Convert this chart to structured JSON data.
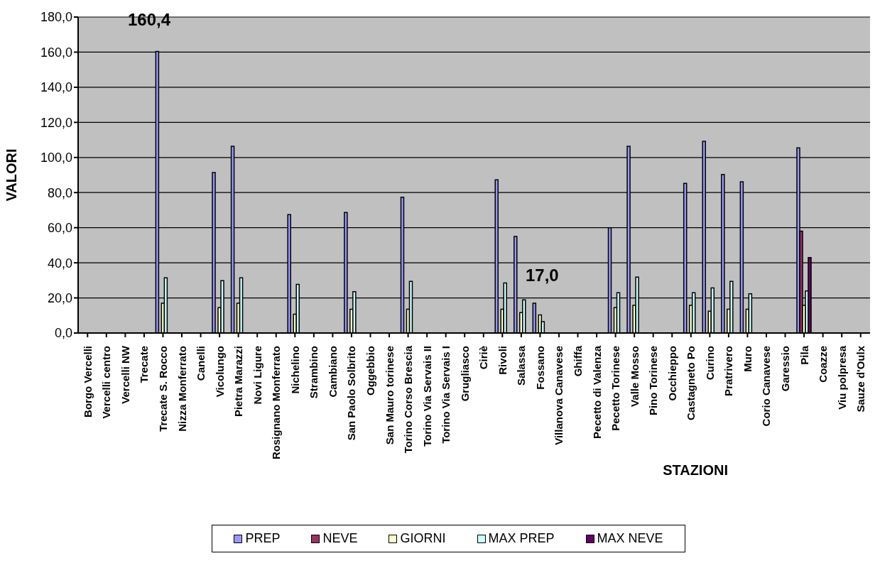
{
  "chart_data": {
    "type": "bar",
    "xlabel": "STAZIONI",
    "ylabel": "VALORI",
    "categories": [
      "Borgo Vercelli",
      "Vercelli centro",
      "Vercelli NW",
      "Trecate",
      "Trecate S. Rocco",
      "Nizza Monferrato",
      "Canelli",
      "Vicolungo",
      "Pietra Marazzi",
      "Novi Ligure",
      "Rosignano Monferrato",
      "Nichelino",
      "Strambino",
      "Cambiano",
      "San Paolo Solbrito",
      "Oggebbio",
      "San Mauro torinese",
      "Torino Corso Brescia",
      "Torino Via Servais II",
      "Torino Via Servais I",
      "Grugliasco",
      "Ciriè",
      "Rivoli",
      "Salassa",
      "Fossano",
      "Villanova Canavese",
      "Ghiffa",
      "Pecetto di Valenza",
      "Pecetto Torinese",
      "Valle Mosso",
      "Pino Torinese",
      "Occhieppo",
      "Castagneto Po",
      "Curino",
      "Pratrivero",
      "Muro",
      "Corio Canavese",
      "Garessio",
      "Pila",
      "Coazze",
      "Viu polpresa",
      "Sauze d'Oulx"
    ],
    "series": [
      {
        "name": "PREP",
        "color": "#9999ff",
        "values": [
          null,
          null,
          null,
          null,
          160.4,
          null,
          null,
          91.4,
          106.4,
          null,
          null,
          67.5,
          null,
          null,
          68.7,
          null,
          null,
          77.4,
          null,
          null,
          null,
          null,
          87.3,
          55,
          17,
          null,
          null,
          null,
          60,
          106.4,
          null,
          null,
          85.2,
          109.2,
          90.3,
          86.2,
          null,
          null,
          105.5,
          null,
          null,
          null
        ]
      },
      {
        "name": "NEVE",
        "color": "#993366",
        "values": [
          null,
          null,
          null,
          null,
          null,
          null,
          null,
          null,
          null,
          null,
          null,
          null,
          null,
          null,
          null,
          null,
          null,
          null,
          null,
          null,
          null,
          null,
          null,
          null,
          null,
          null,
          null,
          null,
          null,
          null,
          null,
          null,
          null,
          null,
          null,
          null,
          null,
          null,
          58,
          null,
          null,
          null
        ]
      },
      {
        "name": "GIORNI",
        "color": "#ffffcc",
        "values": [
          null,
          null,
          null,
          null,
          17,
          null,
          null,
          14.5,
          17,
          null,
          null,
          10.7,
          null,
          null,
          13.6,
          null,
          null,
          13.6,
          null,
          null,
          null,
          null,
          13.6,
          11.6,
          10.3,
          null,
          null,
          null,
          14.5,
          15.8,
          null,
          null,
          15.8,
          12.4,
          13.6,
          13.6,
          null,
          null,
          15.8,
          null,
          null,
          null
        ]
      },
      {
        "name": "MAX PREP",
        "color": "#ccffff",
        "values": [
          null,
          null,
          null,
          null,
          31.4,
          null,
          null,
          29.8,
          31.4,
          null,
          null,
          27.7,
          null,
          null,
          23.6,
          null,
          null,
          29.4,
          null,
          null,
          null,
          null,
          28.5,
          18.9,
          6.5,
          null,
          null,
          null,
          23,
          31.9,
          null,
          null,
          23,
          25.7,
          29.4,
          22.3,
          null,
          null,
          24,
          null,
          null,
          null
        ]
      },
      {
        "name": "MAX NEVE",
        "color": "#660066",
        "values": [
          null,
          null,
          null,
          null,
          null,
          null,
          null,
          null,
          null,
          null,
          null,
          null,
          null,
          null,
          null,
          null,
          null,
          null,
          null,
          null,
          null,
          null,
          null,
          null,
          null,
          null,
          null,
          null,
          null,
          null,
          null,
          null,
          null,
          null,
          null,
          null,
          null,
          null,
          43,
          null,
          null,
          null
        ]
      }
    ],
    "annotations": [
      "160,4",
      "17,0"
    ],
    "ylim": [
      0,
      180
    ],
    "yticks": [
      {
        "value": 0,
        "label": "0,0"
      },
      {
        "value": 20,
        "label": "20,0"
      },
      {
        "value": 40,
        "label": "40,0"
      },
      {
        "value": 60,
        "label": "60,0"
      },
      {
        "value": 80,
        "label": "80,0"
      },
      {
        "value": 100,
        "label": "100,0"
      },
      {
        "value": 120,
        "label": "120,0"
      },
      {
        "value": 140,
        "label": "140,0"
      },
      {
        "value": 160,
        "label": "160,0"
      },
      {
        "value": 180,
        "label": "180,0"
      }
    ],
    "grid": "y",
    "legend": "bottom"
  }
}
